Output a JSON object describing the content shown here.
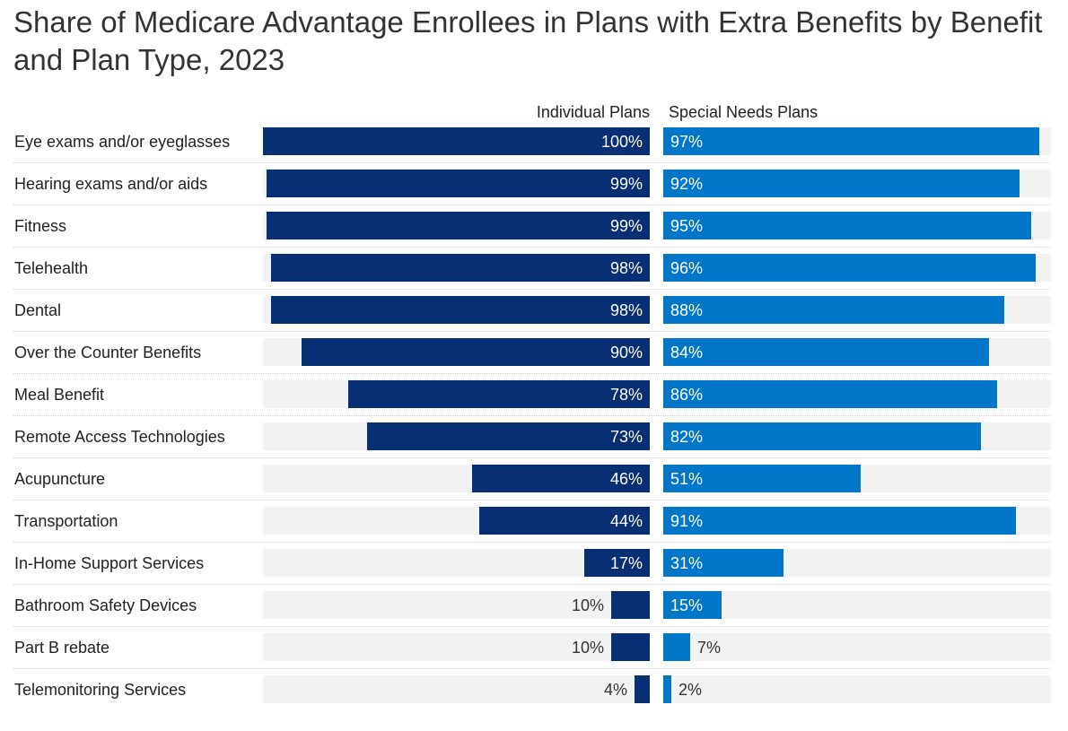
{
  "chart_data": {
    "type": "bar",
    "orientation": "horizontal",
    "title": "Share of Medicare Advantage Enrollees in Plans with Extra Benefits by Benefit and Plan Type, 2023",
    "categories": [
      "Eye exams and/or eyeglasses",
      "Hearing exams and/or aids",
      "Fitness",
      "Telehealth",
      "Dental",
      "Over the Counter Benefits",
      "Meal Benefit",
      "Remote Access Technologies",
      "Acupuncture",
      "Transportation",
      "In-Home Support Services",
      "Bathroom Safety Devices",
      "Part B rebate",
      "Telemonitoring Services"
    ],
    "series": [
      {
        "name": "Individual Plans",
        "color": "#082e73",
        "values": [
          100,
          99,
          99,
          98,
          98,
          90,
          78,
          73,
          46,
          44,
          17,
          10,
          10,
          4
        ],
        "labels": [
          "100%",
          "99%",
          "99%",
          "98%",
          "98%",
          "90%",
          "78%",
          "73%",
          "46%",
          "44%",
          "17%",
          "10%",
          "10%",
          "4%"
        ]
      },
      {
        "name": "Special Needs Plans",
        "color": "#0077c8",
        "values": [
          97,
          92,
          95,
          96,
          88,
          84,
          86,
          82,
          51,
          91,
          31,
          15,
          7,
          2
        ],
        "labels": [
          "97%",
          "92%",
          "95%",
          "96%",
          "88%",
          "84%",
          "86%",
          "82%",
          "51%",
          "91%",
          "31%",
          "15%",
          "7%",
          "2%"
        ]
      }
    ],
    "xlim": [
      0,
      100
    ],
    "unit": "%"
  }
}
